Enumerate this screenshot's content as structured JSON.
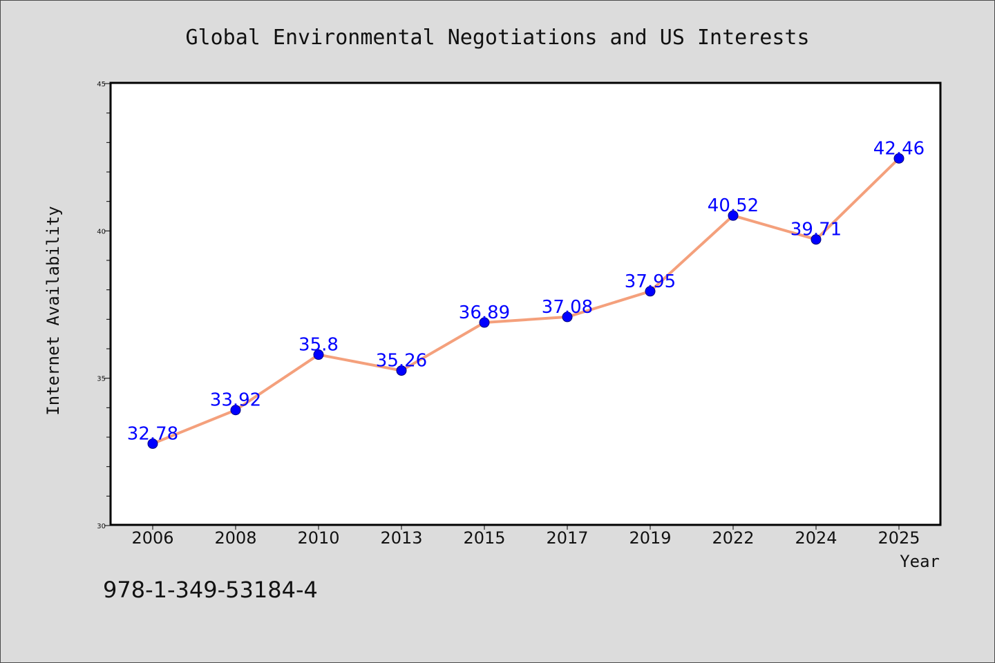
{
  "chart_data": {
    "type": "line",
    "title": "Global Environmental Negotiations and US Interests",
    "xlabel": "Year",
    "ylabel": "Internet Availability",
    "categories": [
      "2006",
      "2008",
      "2010",
      "2013",
      "2015",
      "2017",
      "2019",
      "2022",
      "2024",
      "2025"
    ],
    "series": [
      {
        "values": [
          32.78,
          33.92,
          35.8,
          35.26,
          36.89,
          37.08,
          37.95,
          40.52,
          39.71,
          42.46
        ],
        "labels": [
          "32.78",
          "33.92",
          "35.8",
          "35.26",
          "36.89",
          "37.08",
          "37.95",
          "40.52",
          "39.71",
          "42.46"
        ]
      }
    ],
    "ylim": [
      30,
      45
    ],
    "yticks": [
      "30",
      "35",
      "40",
      "45"
    ],
    "grid": false,
    "colors": {
      "line": "#f4a07c",
      "marker": "#0000ff",
      "label": "#0000ff",
      "background": "#dcdcdc",
      "plot_background": "#ffffff"
    }
  },
  "annotation": "978-1-349-53184-4"
}
